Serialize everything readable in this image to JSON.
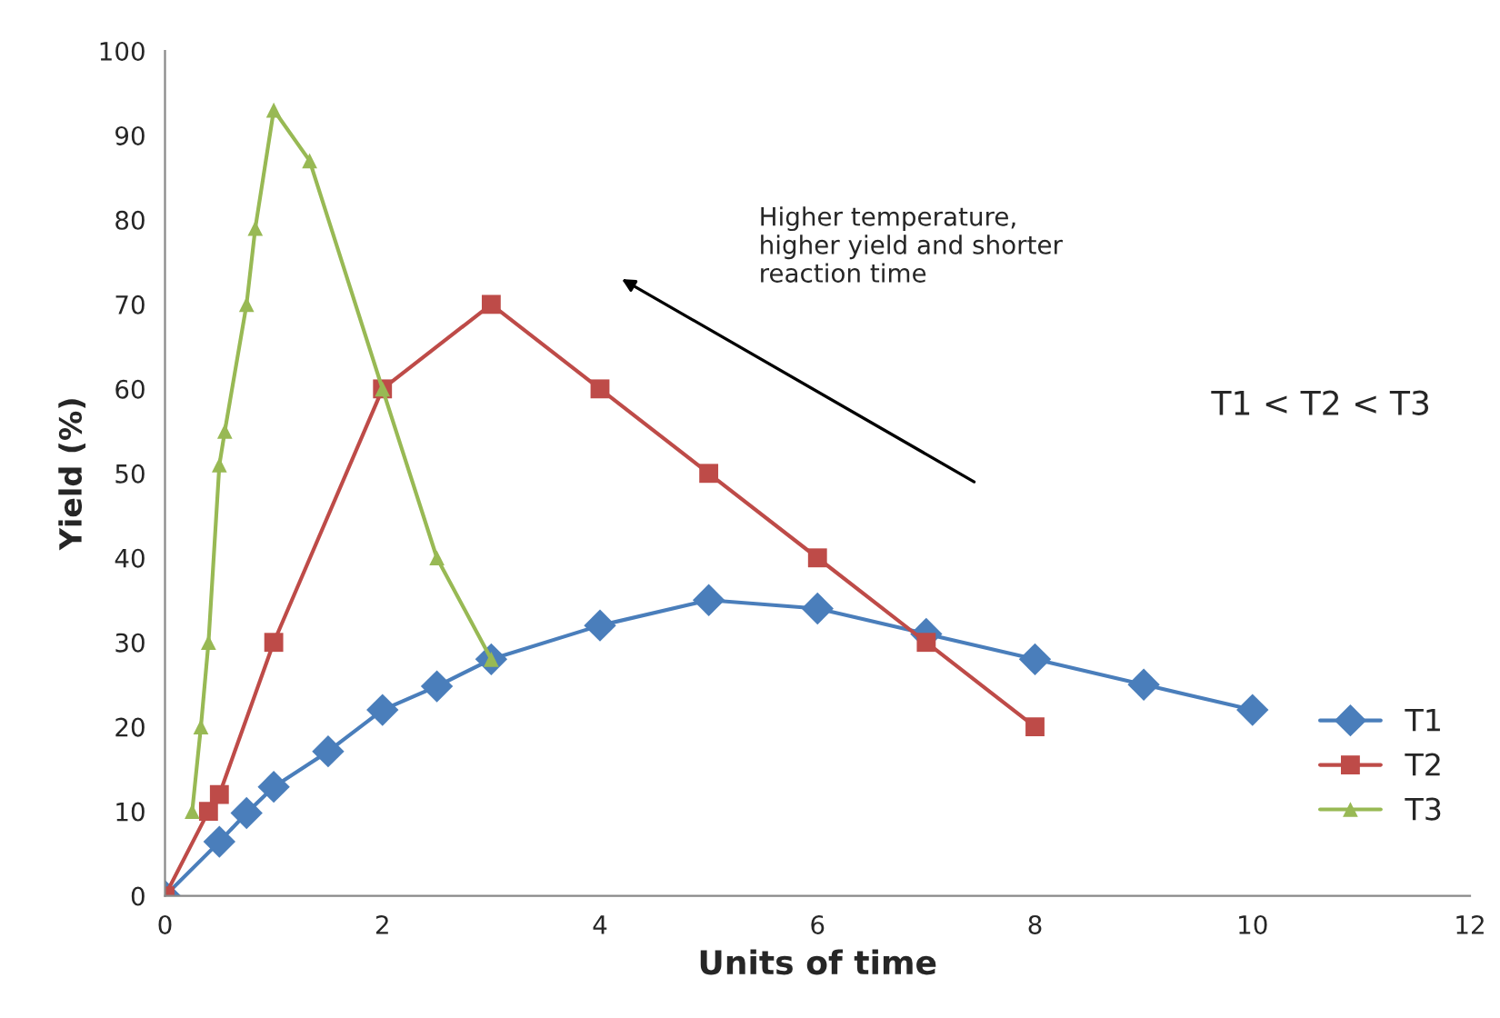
{
  "chart_data": {
    "type": "line",
    "xlabel": "Units of time",
    "ylabel": "Yield (%)",
    "xlim": [
      0,
      12
    ],
    "xticks": [
      0,
      2,
      4,
      6,
      8,
      10,
      12
    ],
    "ylim": [
      0,
      100
    ],
    "yticks": [
      0,
      10,
      20,
      30,
      40,
      50,
      60,
      70,
      80,
      90,
      100
    ],
    "grid": false,
    "legend": "lower right",
    "annotations": [
      "Higher temperature,\nhigher yield and shorter\nreaction time",
      "T1 < T2 < T3"
    ],
    "series": [
      {
        "name": "T1",
        "color": "#4a7ebb",
        "marker": "diamond",
        "x": [
          0,
          0.5,
          0.75,
          1,
          1.5,
          2,
          2.5,
          3,
          4,
          5,
          6,
          7,
          8,
          9,
          10
        ],
        "values": [
          0,
          6.4,
          9.8,
          12.9,
          17.1,
          22,
          24.8,
          28,
          32,
          35,
          34,
          31,
          28,
          25,
          22
        ]
      },
      {
        "name": "T2",
        "color": "#be4b48",
        "marker": "square",
        "x": [
          0,
          0.4,
          0.5,
          1,
          2,
          3,
          4,
          5,
          6,
          7,
          8
        ],
        "values": [
          0,
          10,
          12,
          30,
          60,
          70,
          60,
          50,
          40,
          30,
          20
        ]
      },
      {
        "name": "T3",
        "color": "#98b954",
        "marker": "triangle",
        "x": [
          0.25,
          0.33,
          0.4,
          0.5,
          0.55,
          0.75,
          0.83,
          1,
          1.33,
          2,
          2.5,
          3
        ],
        "values": [
          10,
          20,
          30,
          51,
          55,
          70,
          79,
          93,
          87,
          60,
          40,
          28
        ]
      }
    ]
  }
}
